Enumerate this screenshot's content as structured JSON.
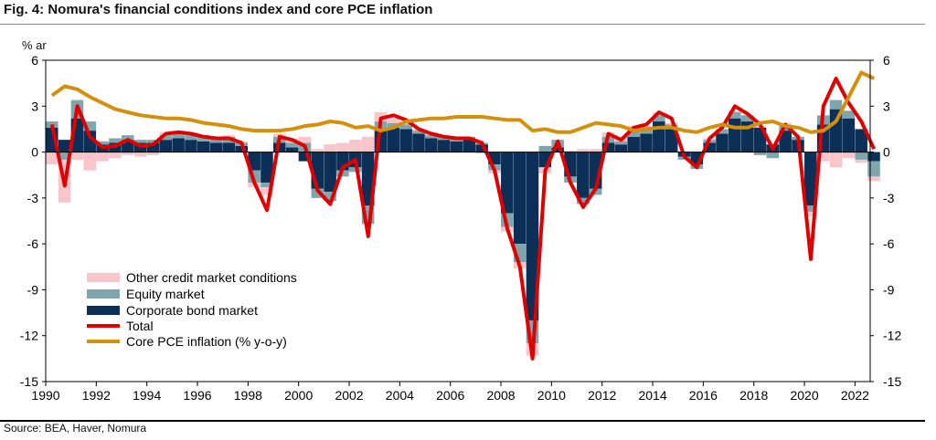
{
  "figure": {
    "title": "Fig. 4: Nomura's financial conditions index and core PCE inflation",
    "unit_label": "% ar",
    "source": "Source: BEA, Haver, Nomura"
  },
  "chart_data": {
    "type": "bar",
    "title": "Fig. 4: Nomura's financial conditions index and core PCE inflation",
    "ylabel": "% ar",
    "ylim": [
      -15,
      6
    ],
    "xlim": [
      1990.0,
      2022.6
    ],
    "yticks": [
      6,
      3,
      0,
      -3,
      -6,
      -9,
      -12,
      -15
    ],
    "xticks": [
      1990,
      1992,
      1994,
      1996,
      1998,
      2000,
      2002,
      2004,
      2006,
      2008,
      2010,
      2012,
      2014,
      2016,
      2018,
      2020,
      2022
    ],
    "legend_position": "lower-left",
    "x": [
      1990.0,
      1990.5,
      1991.0,
      1991.5,
      1992.0,
      1992.5,
      1993.0,
      1993.5,
      1994.0,
      1994.5,
      1995.0,
      1995.5,
      1996.0,
      1996.5,
      1997.0,
      1997.5,
      1998.0,
      1998.5,
      1999.0,
      1999.5,
      2000.0,
      2000.5,
      2001.0,
      2001.5,
      2002.0,
      2002.5,
      2003.0,
      2003.5,
      2004.0,
      2004.5,
      2005.0,
      2005.5,
      2006.0,
      2006.5,
      2007.0,
      2007.5,
      2008.0,
      2008.5,
      2009.0,
      2009.5,
      2010.0,
      2010.5,
      2011.0,
      2011.5,
      2012.0,
      2012.5,
      2013.0,
      2013.5,
      2014.0,
      2014.5,
      2015.0,
      2015.5,
      2016.0,
      2016.5,
      2017.0,
      2017.5,
      2018.0,
      2018.5,
      2019.0,
      2019.5,
      2020.0,
      2020.5,
      2021.0,
      2021.5,
      2022.0,
      2022.5
    ],
    "series": [
      {
        "name": "Other credit market conditions",
        "kind": "bar",
        "color": "#f7c5ca",
        "values": [
          -0.8,
          -2.8,
          -0.5,
          -1.2,
          -0.6,
          -0.4,
          -0.2,
          -0.3,
          -0.2,
          0.2,
          0.1,
          0.2,
          0.0,
          0.1,
          0.1,
          0.1,
          -0.3,
          -0.5,
          0.2,
          0.3,
          0.4,
          0.2,
          0.5,
          0.6,
          0.8,
          1.0,
          0.6,
          0.3,
          0.2,
          0.1,
          0.2,
          0.1,
          0.0,
          0.0,
          -0.1,
          -0.2,
          -0.3,
          -0.4,
          -0.8,
          -0.4,
          0.0,
          0.1,
          0.2,
          0.2,
          0.3,
          0.2,
          0.2,
          0.1,
          0.2,
          0.1,
          0.0,
          0.0,
          0.1,
          0.0,
          0.1,
          0.0,
          0.1,
          0.0,
          0.1,
          0.0,
          -0.3,
          -0.6,
          -1.0,
          -0.4,
          -0.2,
          -0.3
        ]
      },
      {
        "name": "Equity market",
        "kind": "bar",
        "color": "#7fa5ad",
        "values": [
          0.4,
          -0.5,
          1.2,
          0.6,
          0.2,
          0.3,
          0.3,
          0.2,
          0.2,
          0.3,
          0.4,
          0.3,
          0.4,
          0.3,
          0.4,
          0.2,
          -0.8,
          -0.3,
          0.4,
          0.3,
          0.6,
          -0.6,
          -0.6,
          -0.4,
          -0.3,
          -1.2,
          0.6,
          0.3,
          0.3,
          0.2,
          0.2,
          0.2,
          0.2,
          0.2,
          0.1,
          -0.4,
          -0.9,
          -1.2,
          -1.5,
          0.4,
          0.5,
          -0.4,
          -0.4,
          -0.4,
          0.4,
          0.2,
          0.5,
          0.4,
          0.4,
          0.2,
          -0.2,
          -0.3,
          0.2,
          0.3,
          0.4,
          0.4,
          -0.2,
          -0.4,
          0.4,
          0.2,
          -0.4,
          0.6,
          0.6,
          0.5,
          -0.5,
          -1.0
        ]
      },
      {
        "name": "Corporate bond market",
        "kind": "bar",
        "color": "#0b2f56",
        "values": [
          1.6,
          0.8,
          2.2,
          1.4,
          0.5,
          0.6,
          0.8,
          0.6,
          0.6,
          0.8,
          0.9,
          0.8,
          0.7,
          0.6,
          0.6,
          0.4,
          -1.2,
          -2.0,
          0.6,
          0.3,
          -0.6,
          -2.4,
          -2.6,
          -1.2,
          -1.0,
          -3.5,
          1.4,
          1.6,
          1.5,
          1.2,
          0.9,
          0.8,
          0.7,
          0.8,
          0.5,
          -0.8,
          -4.0,
          -6.0,
          -11.0,
          -1.0,
          0.3,
          -1.6,
          -3.0,
          -2.4,
          0.6,
          0.5,
          1.0,
          1.2,
          2.0,
          1.6,
          -0.3,
          -0.8,
          0.6,
          1.2,
          2.2,
          2.0,
          1.6,
          0.5,
          1.4,
          0.8,
          -3.5,
          1.8,
          2.8,
          2.2,
          1.5,
          -0.6
        ]
      },
      {
        "name": "Total",
        "kind": "line",
        "color": "#e00000",
        "values": [
          1.8,
          -2.2,
          3.0,
          1.0,
          0.3,
          0.4,
          0.8,
          0.4,
          0.5,
          1.2,
          1.3,
          1.2,
          1.0,
          0.9,
          0.9,
          0.6,
          -2.0,
          -3.8,
          1.0,
          0.8,
          0.4,
          -2.5,
          -3.4,
          -1.0,
          -0.5,
          -5.5,
          2.2,
          2.4,
          2.1,
          1.5,
          1.2,
          1.0,
          0.9,
          0.9,
          0.6,
          -1.2,
          -5.0,
          -7.5,
          -13.5,
          -1.2,
          0.7,
          -2.0,
          -3.6,
          -2.4,
          1.2,
          0.8,
          1.6,
          1.8,
          2.6,
          2.2,
          -0.3,
          -1.0,
          0.9,
          1.6,
          3.0,
          2.5,
          1.8,
          0.2,
          1.8,
          1.0,
          -7.0,
          3.0,
          4.8,
          3.2,
          2.0,
          0.2
        ]
      },
      {
        "name": "Core PCE inflation (% y-o-y)",
        "kind": "line",
        "color": "#d4900a",
        "values": [
          3.7,
          4.3,
          4.1,
          3.6,
          3.2,
          2.8,
          2.6,
          2.4,
          2.3,
          2.2,
          2.2,
          2.1,
          1.9,
          1.8,
          1.7,
          1.5,
          1.4,
          1.4,
          1.4,
          1.5,
          1.7,
          1.8,
          2.0,
          1.9,
          1.6,
          1.7,
          1.4,
          1.6,
          2.0,
          2.1,
          2.2,
          2.2,
          2.3,
          2.3,
          2.3,
          2.2,
          2.1,
          2.1,
          1.4,
          1.5,
          1.3,
          1.3,
          1.6,
          1.9,
          1.8,
          1.7,
          1.4,
          1.5,
          1.6,
          1.6,
          1.4,
          1.3,
          1.6,
          1.8,
          1.6,
          1.6,
          1.9,
          2.0,
          1.7,
          1.6,
          1.3,
          1.4,
          2.0,
          3.6,
          5.2,
          4.8
        ]
      }
    ]
  },
  "legend": {
    "other": "Other credit market conditions",
    "equity": "Equity market",
    "bond": "Corporate bond market",
    "total": "Total",
    "pce": "Core PCE inflation (% y-o-y)"
  }
}
